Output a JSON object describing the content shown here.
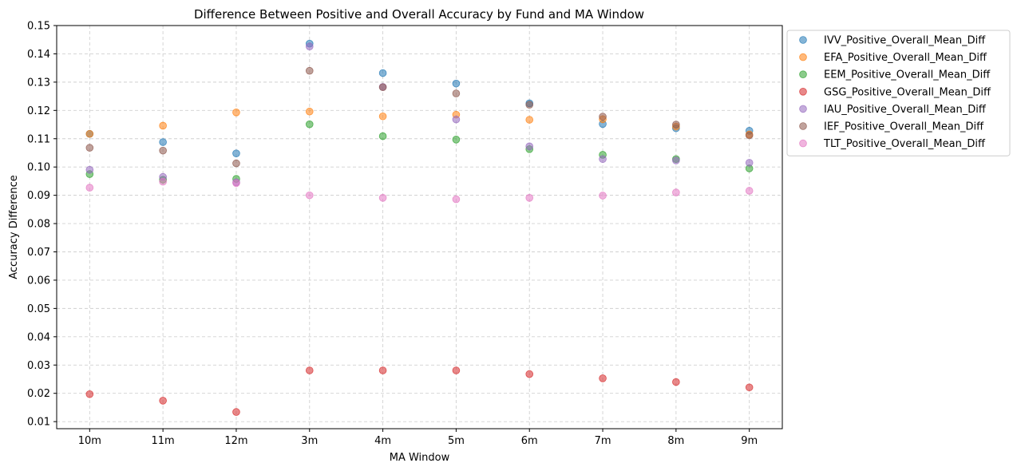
{
  "chart_data": {
    "type": "scatter",
    "title": "Difference Between Positive and Overall Accuracy by Fund and MA Window",
    "xlabel": "MA Window",
    "ylabel": "Accuracy Difference",
    "categories": [
      "10m",
      "11m",
      "12m",
      "3m",
      "4m",
      "5m",
      "6m",
      "7m",
      "8m",
      "9m"
    ],
    "ylim": [
      0.0075,
      0.15
    ],
    "yticks": [
      "0.01",
      "0.02",
      "0.03",
      "0.04",
      "0.05",
      "0.06",
      "0.07",
      "0.08",
      "0.09",
      "0.10",
      "0.11",
      "0.12",
      "0.13",
      "0.14",
      "0.15"
    ],
    "grid": true,
    "legend_position": "outside-top-right",
    "series": [
      {
        "name": "IVV_Positive_Overall_Mean_Diff",
        "color": "#1f77b4",
        "values": [
          0.1117,
          0.1088,
          0.1048,
          0.1436,
          0.1332,
          0.1295,
          0.1225,
          0.1152,
          0.1137,
          0.1128
        ]
      },
      {
        "name": "EFA_Positive_Overall_Mean_Diff",
        "color": "#ff7f0e",
        "values": [
          0.1117,
          0.1146,
          0.1193,
          0.1196,
          0.1179,
          0.1185,
          0.1167,
          0.1169,
          0.1143,
          0.1115
        ]
      },
      {
        "name": "EEM_Positive_Overall_Mean_Diff",
        "color": "#2ca02c",
        "values": [
          0.0975,
          0.0955,
          0.0958,
          0.1151,
          0.1109,
          0.1097,
          0.1063,
          0.1043,
          0.1028,
          0.0995
        ]
      },
      {
        "name": "GSG_Positive_Overall_Mean_Diff",
        "color": "#d62728",
        "values": [
          0.0197,
          0.0174,
          0.0134,
          0.0281,
          0.0281,
          0.0281,
          0.0268,
          0.0253,
          0.024,
          0.0221
        ]
      },
      {
        "name": "IAU_Positive_Overall_Mean_Diff",
        "color": "#9467bd",
        "values": [
          0.099,
          0.0965,
          0.0946,
          0.1426,
          0.1283,
          0.1168,
          0.1073,
          0.1028,
          0.1023,
          0.1015
        ]
      },
      {
        "name": "IEF_Positive_Overall_Mean_Diff",
        "color": "#8c564b",
        "values": [
          0.1068,
          0.1058,
          0.1013,
          0.134,
          0.1282,
          0.126,
          0.122,
          0.1178,
          0.115,
          0.1112
        ]
      },
      {
        "name": "TLT_Positive_Overall_Mean_Diff",
        "color": "#e377c2",
        "values": [
          0.0927,
          0.0948,
          0.0943,
          0.09,
          0.0891,
          0.0886,
          0.0891,
          0.0899,
          0.091,
          0.0916
        ]
      }
    ]
  }
}
